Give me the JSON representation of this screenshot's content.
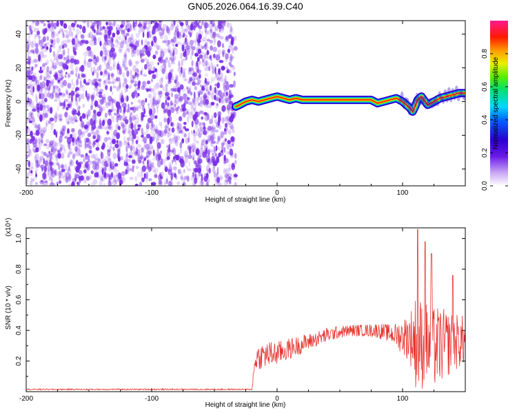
{
  "title": "GN05.2026.064.16.39.C40",
  "colors": {
    "series_line": "#e8332f",
    "speckle": "#7a2ee6",
    "ridge_palette": [
      "#2a00d0",
      "#00c8ff",
      "#00e050",
      "#ffe000",
      "#ff2a00"
    ]
  },
  "chart_data": [
    {
      "type": "heatmap",
      "name": "spectrogram",
      "xlabel": "Height of straight line (km)",
      "ylabel": "Frequency (Hz)",
      "xlim": [
        -200,
        150
      ],
      "ylim": [
        -50,
        48
      ],
      "xticks": [
        -200,
        -100,
        0,
        100
      ],
      "yticks": [
        -40,
        -20,
        0,
        20,
        40
      ],
      "colorbar": {
        "label": "Normalized spectral amplitude",
        "range": [
          0,
          1
        ],
        "ticks": [
          "0.0",
          "0.2",
          "0.4",
          "0.6",
          "0.8"
        ],
        "colormap": "rainbow (purple-blue-cyan-green-yellow-orange-red-magenta)"
      },
      "noise_region_x": [
        -200,
        -33
      ],
      "ridge": {
        "x": [
          -33,
          -30,
          -25,
          -20,
          -15,
          -10,
          -5,
          0,
          5,
          10,
          15,
          20,
          30,
          40,
          50,
          60,
          70,
          75,
          80,
          85,
          90,
          95,
          100,
          103,
          106,
          108,
          110,
          112,
          115,
          120,
          125,
          130,
          135,
          140,
          145,
          150
        ],
        "freq": [
          -3,
          -2,
          0,
          1,
          0,
          1,
          2,
          3,
          2,
          1,
          2,
          1,
          1,
          1,
          1,
          1,
          1,
          1,
          -1,
          0,
          1,
          2,
          0,
          -2,
          -4,
          -6,
          -3,
          1,
          3,
          -2,
          0,
          2,
          3,
          4,
          5,
          5
        ]
      },
      "grid": false
    },
    {
      "type": "line",
      "name": "snr",
      "xlabel": "Height of straight line (km)",
      "ylabel": "SNR (10 * v/v)",
      "scale_label": "(x10⁴)",
      "xlim": [
        -200,
        150
      ],
      "ylim": [
        0,
        1.07
      ],
      "xticks": [
        -200,
        -100,
        0,
        100
      ],
      "yticks": [
        "0.2",
        "0.4",
        "0.6",
        "0.8",
        "1.0"
      ],
      "envelope": {
        "x": [
          -200,
          -120,
          -40,
          -20,
          -19,
          -17,
          -10,
          0,
          10,
          20,
          30,
          40,
          50,
          60,
          70,
          80,
          90,
          95,
          100,
          105,
          108,
          110,
          112,
          115,
          120,
          125,
          130,
          135,
          140,
          145,
          150
        ],
        "mean": [
          0.015,
          0.015,
          0.015,
          0.015,
          0.1,
          0.22,
          0.24,
          0.25,
          0.28,
          0.31,
          0.34,
          0.37,
          0.39,
          0.4,
          0.4,
          0.4,
          0.38,
          0.37,
          0.36,
          0.36,
          0.35,
          0.33,
          0.32,
          0.31,
          0.3,
          0.29,
          0.3,
          0.31,
          0.32,
          0.33,
          0.33
        ],
        "spread": [
          0.004,
          0.004,
          0.004,
          0.004,
          0.04,
          0.08,
          0.09,
          0.08,
          0.07,
          0.06,
          0.05,
          0.05,
          0.04,
          0.04,
          0.04,
          0.05,
          0.06,
          0.08,
          0.12,
          0.16,
          0.22,
          0.3,
          0.33,
          0.3,
          0.28,
          0.27,
          0.26,
          0.22,
          0.2,
          0.18,
          0.16
        ]
      },
      "peaks": [
        {
          "x": 112,
          "y": 1.06
        },
        {
          "x": 118,
          "y": 0.98
        },
        {
          "x": 123,
          "y": 0.9
        },
        {
          "x": 140,
          "y": 0.76
        }
      ],
      "grid": false
    }
  ]
}
